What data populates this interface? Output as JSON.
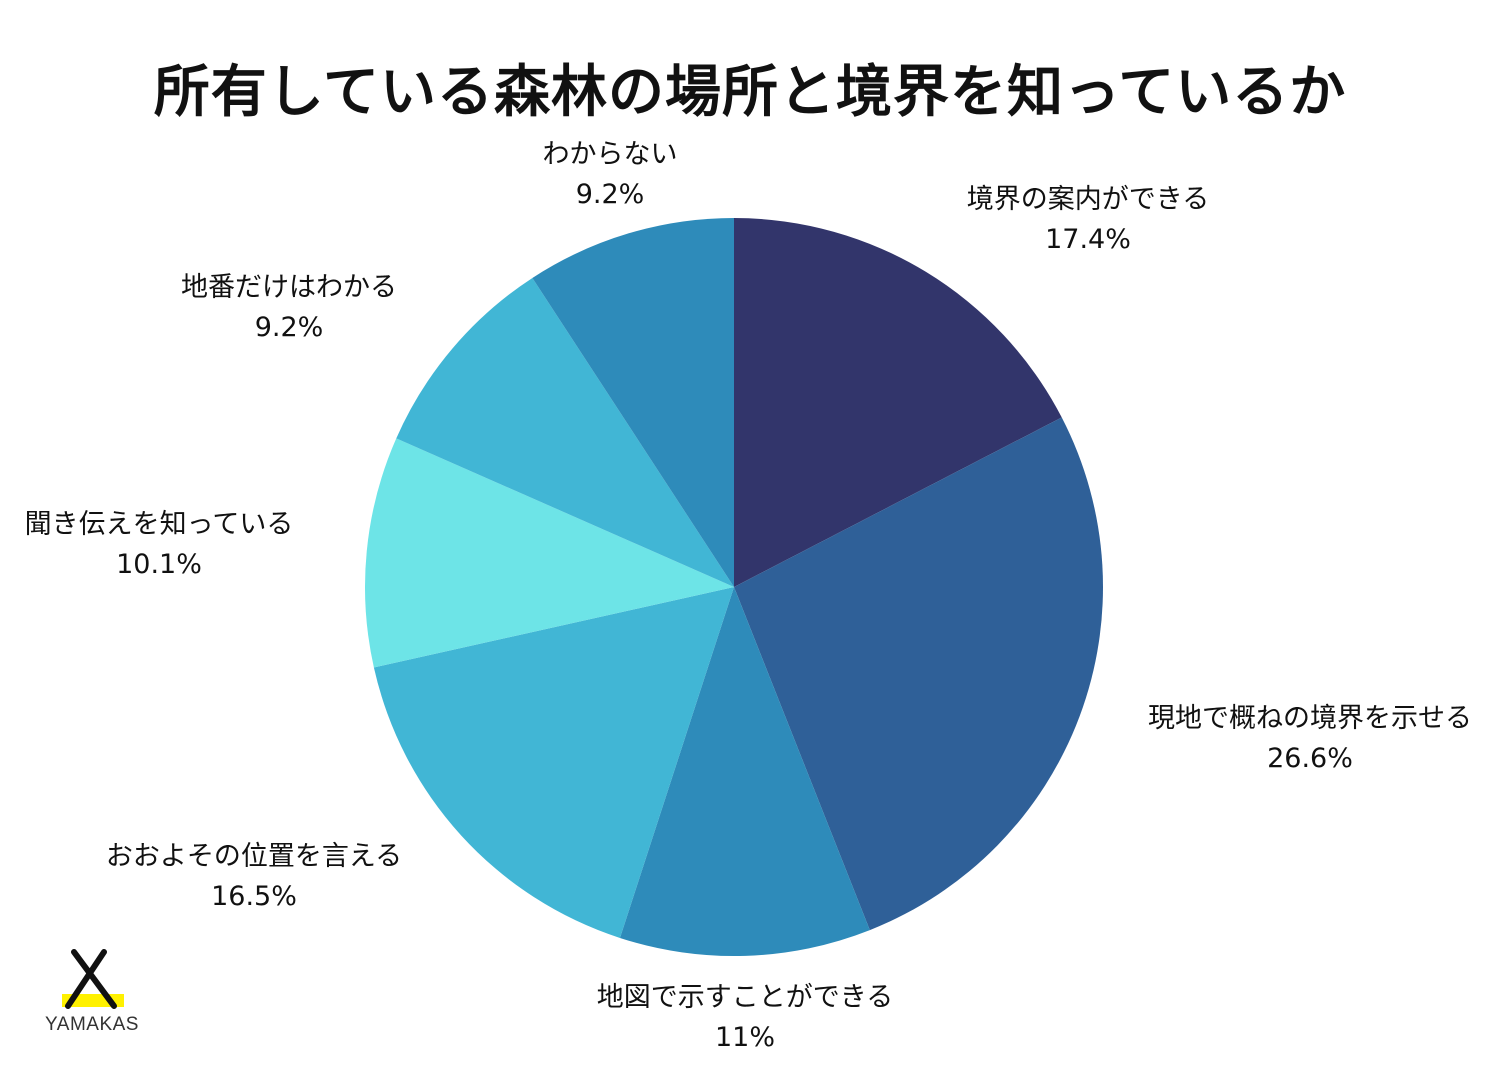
{
  "chart_data": {
    "type": "pie",
    "title": "所有している森林の場所と境界を知っているか",
    "start": "12 o'clock",
    "direction": "clockwise",
    "slices": [
      {
        "label": "境界の案内ができる",
        "value": 17.4,
        "value_label": "17.4%",
        "color": "#32356b"
      },
      {
        "label": "現地で概ねの境界を示せる",
        "value": 26.6,
        "value_label": "26.6%",
        "color": "#2f6098"
      },
      {
        "label": "地図で示すことができる",
        "value": 11,
        "value_label": "11%",
        "color": "#2e8bba"
      },
      {
        "label": "おおよその位置を言える",
        "value": 16.5,
        "value_label": "16.5%",
        "color": "#41b6d5"
      },
      {
        "label": "聞き伝えを知っている",
        "value": 10.1,
        "value_label": "10.1%",
        "color": "#6de4e7"
      },
      {
        "label": "地番だけはわかる",
        "value": 9.2,
        "value_label": "9.2%",
        "color": "#41b6d5"
      },
      {
        "label": "わからない",
        "value": 9.2,
        "value_label": "9.2%",
        "color": "#2e8bba"
      }
    ]
  },
  "logo": {
    "text": "YAMAKAS",
    "accent_color": "#fff100",
    "mark_color": "#111111"
  }
}
